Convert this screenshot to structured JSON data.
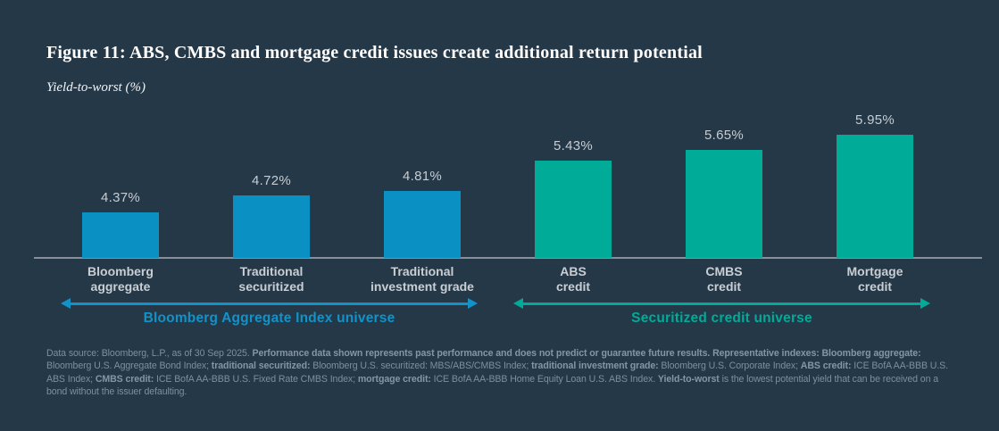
{
  "figure": {
    "title": "Figure 11: ABS, CMBS and mortgage credit issues create additional return potential",
    "subtitle": "Yield-to-worst (%)"
  },
  "colors": {
    "background": "#253847",
    "blue_bar": "#0a90c2",
    "teal_bar": "#00ab97",
    "axis_line": "#87909a",
    "value_label": "#c7cdd3",
    "category_label": "#c9ced4",
    "blue_accent": "#1193c9",
    "teal_accent": "#00ab97",
    "footnote_text": "#7d8fa0"
  },
  "chart_data": {
    "type": "bar",
    "title": "Figure 11: ABS, CMBS and mortgage credit issues create additional return potential",
    "xlabel": "",
    "ylabel": "Yield-to-worst (%)",
    "grid": false,
    "legend": false,
    "ylim": [
      3.45,
      6.63
    ],
    "categories": [
      "Bloomberg aggregate",
      "Traditional securitized",
      "Traditional investment grade",
      "ABS credit",
      "CMBS credit",
      "Mortgage credit"
    ],
    "category_lines": [
      [
        "Bloomberg",
        "aggregate"
      ],
      [
        "Traditional",
        "securitized"
      ],
      [
        "Traditional",
        "investment grade"
      ],
      [
        "ABS",
        "credit"
      ],
      [
        "CMBS",
        "credit"
      ],
      [
        "Mortgage",
        "credit"
      ]
    ],
    "values": [
      4.37,
      4.72,
      4.81,
      5.43,
      5.65,
      5.95
    ],
    "value_labels": [
      "4.37%",
      "4.72%",
      "4.81%",
      "5.43%",
      "5.65%",
      "5.95%"
    ],
    "bar_colors": [
      "#0a90c2",
      "#0a90c2",
      "#0a90c2",
      "#00ab97",
      "#00ab97",
      "#00ab97"
    ],
    "groups": [
      {
        "label": "Bloomberg Aggregate Index universe",
        "color": "#1193c9",
        "from": 0,
        "to": 2
      },
      {
        "label": "Securitized credit universe",
        "color": "#00ab97",
        "from": 3,
        "to": 5
      }
    ]
  },
  "footnote": {
    "segments": [
      {
        "text": "Data source: Bloomberg, L.P., as of 30 Sep 2025. ",
        "bold": false
      },
      {
        "text": "Performance data shown represents past performance and does not predict or guarantee future results. Representative indexes: Bloomberg aggregate:",
        "bold": true
      },
      {
        "text": " Bloomberg U.S. Aggregate Bond Index; ",
        "bold": false
      },
      {
        "text": "traditional securitized:",
        "bold": true
      },
      {
        "text": " Bloomberg U.S. securitized: MBS/ABS/CMBS Index; ",
        "bold": false
      },
      {
        "text": "traditional investment grade:",
        "bold": true
      },
      {
        "text": " Bloomberg U.S. Corporate Index; ",
        "bold": false
      },
      {
        "text": "ABS credit:",
        "bold": true
      },
      {
        "text": " ICE BofA AA-BBB U.S. ABS Index; ",
        "bold": false
      },
      {
        "text": "CMBS credit:",
        "bold": true
      },
      {
        "text": " ICE BofA AA-BBB U.S. Fixed Rate CMBS Index; ",
        "bold": false
      },
      {
        "text": "mortgage credit:",
        "bold": true
      },
      {
        "text": " ICE BofA AA-BBB Home Equity Loan U.S. ABS Index. ",
        "bold": false
      },
      {
        "text": "Yield-to-worst",
        "bold": true
      },
      {
        "text": " is the lowest potential yield that can be received on a bond without the issuer defaulting.",
        "bold": false
      }
    ]
  }
}
